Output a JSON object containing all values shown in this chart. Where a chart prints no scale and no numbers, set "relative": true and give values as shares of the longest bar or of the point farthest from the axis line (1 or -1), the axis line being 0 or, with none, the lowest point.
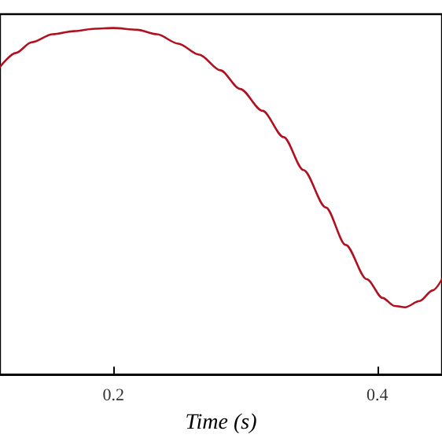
{
  "chart_data": {
    "type": "line",
    "xlabel": "Time (s)",
    "relative": true,
    "xlim": [
      0.114,
      0.449
    ],
    "xticks": [
      0.2,
      0.4
    ],
    "grid": false,
    "marker": "none",
    "line_style": "solid",
    "series": [
      {
        "color": "#b01020",
        "x": [
          0.114,
          0.126,
          0.138,
          0.154,
          0.17,
          0.186,
          0.2,
          0.218,
          0.233,
          0.249,
          0.265,
          0.281,
          0.296,
          0.313,
          0.329,
          0.344,
          0.361,
          0.376,
          0.392,
          0.404,
          0.413,
          0.421,
          0.432,
          0.442,
          0.449
        ],
        "values": [
          0.888,
          0.928,
          0.959,
          0.982,
          0.991,
          0.998,
          1.0,
          0.995,
          0.982,
          0.955,
          0.923,
          0.878,
          0.824,
          0.761,
          0.685,
          0.59,
          0.482,
          0.374,
          0.275,
          0.221,
          0.198,
          0.194,
          0.212,
          0.243,
          0.275
        ]
      }
    ]
  }
}
